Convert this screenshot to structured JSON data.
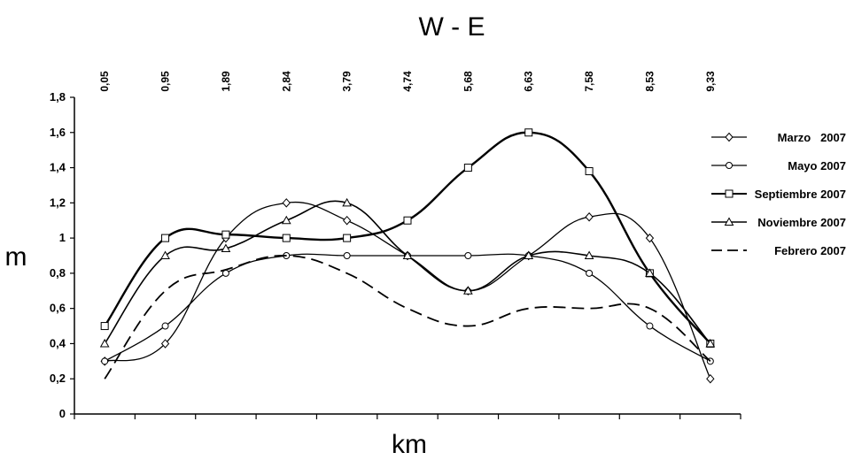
{
  "chart_data": {
    "type": "line",
    "title": "W - E",
    "xlabel": "km",
    "ylabel": "m",
    "categories": [
      "0,05",
      "0,95",
      "1,89",
      "2,84",
      "3,79",
      "4,74",
      "5,68",
      "6,63",
      "7,58",
      "8,53",
      "9,33"
    ],
    "yticks": [
      "0",
      "0,2",
      "0,4",
      "0,6",
      "0,8",
      "1",
      "1,2",
      "1,4",
      "1,6",
      "1,8"
    ],
    "ylim": [
      0,
      1.8
    ],
    "grid": false,
    "legend_position": "right",
    "series": [
      {
        "name": "Marzo   2007",
        "marker": "diamond",
        "dash": "none",
        "width": 1.3,
        "values": [
          0.3,
          0.4,
          1.0,
          1.2,
          1.1,
          0.9,
          0.7,
          0.9,
          1.12,
          1.0,
          0.2
        ]
      },
      {
        "name": "Mayo 2007",
        "marker": "circle",
        "dash": "none",
        "width": 1.3,
        "values": [
          0.3,
          0.5,
          0.8,
          0.9,
          0.9,
          0.9,
          0.9,
          0.9,
          0.8,
          0.5,
          0.3
        ]
      },
      {
        "name": "Septiembre 2007",
        "marker": "square",
        "dash": "none",
        "width": 2.4,
        "values": [
          0.5,
          1.0,
          1.02,
          1.0,
          1.0,
          1.1,
          1.4,
          1.6,
          1.38,
          0.8,
          0.4
        ]
      },
      {
        "name": "Noviembre 2007",
        "marker": "triangle",
        "dash": "none",
        "width": 1.6,
        "values": [
          0.4,
          0.9,
          0.94,
          1.1,
          1.2,
          0.9,
          0.7,
          0.9,
          0.9,
          0.8,
          0.4
        ]
      },
      {
        "name": "Febrero 2007",
        "marker": "none",
        "dash": "dashed",
        "width": 1.8,
        "values": [
          0.2,
          0.7,
          0.82,
          0.9,
          0.8,
          0.6,
          0.5,
          0.6,
          0.6,
          0.6,
          0.3
        ]
      }
    ]
  }
}
